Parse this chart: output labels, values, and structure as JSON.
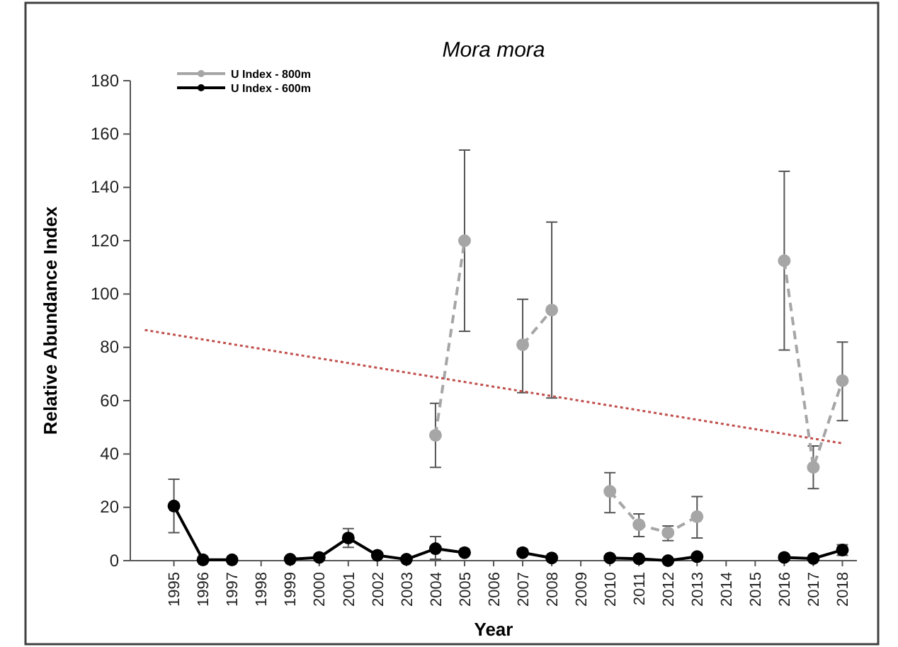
{
  "chart_data": {
    "type": "line",
    "title": "Mora mora",
    "xlabel": "Year",
    "ylabel": "Relative Abundance Index",
    "x": [
      1995,
      1996,
      1997,
      1998,
      1999,
      2000,
      2001,
      2002,
      2003,
      2004,
      2005,
      2006,
      2007,
      2008,
      2009,
      2010,
      2011,
      2012,
      2013,
      2014,
      2015,
      2016,
      2017,
      2018
    ],
    "xlim": [
      1993.5,
      2018.5
    ],
    "xticks": [
      1995,
      1996,
      1997,
      1998,
      1999,
      2000,
      2001,
      2002,
      2003,
      2004,
      2005,
      2006,
      2007,
      2008,
      2009,
      2010,
      2011,
      2012,
      2013,
      2014,
      2015,
      2016,
      2017,
      2018
    ],
    "ylim": [
      0,
      180
    ],
    "yticks": [
      0,
      20,
      40,
      60,
      80,
      100,
      120,
      140,
      160,
      180
    ],
    "grid": false,
    "legend": "top left",
    "marker": "circle",
    "series": [
      {
        "name": "U Index - 800m",
        "color": "#a6a6a6",
        "line_style": "dashed",
        "values": [
          null,
          null,
          null,
          null,
          null,
          null,
          null,
          null,
          null,
          47,
          120,
          null,
          81,
          94,
          null,
          26,
          13.5,
          10.5,
          16.5,
          null,
          null,
          112.5,
          35,
          67.5
        ],
        "errors": [
          null,
          null,
          null,
          null,
          null,
          null,
          null,
          null,
          null,
          [
            35,
            59
          ],
          [
            86,
            154
          ],
          null,
          [
            63,
            98
          ],
          [
            61,
            127
          ],
          null,
          [
            18,
            33
          ],
          [
            9,
            17.5
          ],
          [
            7.5,
            13
          ],
          [
            8.5,
            24
          ],
          null,
          null,
          [
            79,
            146
          ],
          [
            27,
            43
          ],
          [
            52.5,
            82
          ]
        ]
      },
      {
        "name": "U Index - 600m",
        "color": "#000000",
        "line_style": "solid",
        "values": [
          20.5,
          0.3,
          0.3,
          null,
          0.5,
          1.2,
          8.5,
          2,
          0.5,
          4.5,
          3,
          null,
          3,
          1,
          null,
          1,
          0.7,
          0,
          1.5,
          null,
          null,
          1.2,
          0.8,
          4
        ],
        "errors": [
          [
            10.5,
            30.5
          ],
          null,
          null,
          null,
          null,
          null,
          [
            5,
            12
          ],
          null,
          null,
          [
            0.5,
            9
          ],
          null,
          null,
          null,
          null,
          null,
          null,
          null,
          null,
          null,
          null,
          null,
          null,
          null,
          [
            2,
            6
          ]
        ]
      },
      {
        "type": "line",
        "color": "#c0504d",
        "line_style": "dotted",
        "marker": "none",
        "x": [
          1994,
          2018
        ],
        "values": [
          86.5,
          44
        ]
      }
    ]
  }
}
